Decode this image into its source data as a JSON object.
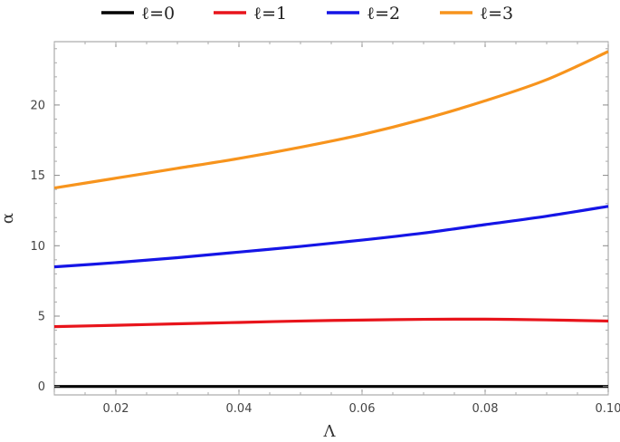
{
  "chart_data": {
    "type": "line",
    "title": "",
    "xlabel": "Λ",
    "ylabel": "α",
    "xlim": [
      0.01,
      0.1
    ],
    "ylim": [
      -0.6,
      24.5
    ],
    "grid": false,
    "legend_position": "top",
    "x_ticks": [
      {
        "value": 0.02,
        "label": "0.02"
      },
      {
        "value": 0.04,
        "label": "0.04"
      },
      {
        "value": 0.06,
        "label": "0.06"
      },
      {
        "value": 0.08,
        "label": "0.08"
      },
      {
        "value": 0.1,
        "label": "0.10"
      }
    ],
    "y_ticks": [
      {
        "value": 0,
        "label": "0"
      },
      {
        "value": 5,
        "label": "5"
      },
      {
        "value": 10,
        "label": "10"
      },
      {
        "value": 15,
        "label": "15"
      },
      {
        "value": 20,
        "label": "20"
      }
    ],
    "x": [
      0.01,
      0.02,
      0.03,
      0.04,
      0.05,
      0.06,
      0.07,
      0.08,
      0.09,
      0.1
    ],
    "series": [
      {
        "name": "ℓ=0",
        "color": "#000000",
        "values": [
          0,
          0,
          0,
          0,
          0,
          0,
          0,
          0,
          0,
          0
        ]
      },
      {
        "name": "ℓ=1",
        "color": "#e8141b",
        "values": [
          4.25,
          4.35,
          4.45,
          4.55,
          4.65,
          4.72,
          4.77,
          4.78,
          4.73,
          4.65
        ]
      },
      {
        "name": "ℓ=2",
        "color": "#1515e6",
        "values": [
          8.5,
          8.8,
          9.15,
          9.55,
          9.95,
          10.4,
          10.9,
          11.5,
          12.1,
          12.8
        ]
      },
      {
        "name": "ℓ=3",
        "color": "#f7941d",
        "values": [
          14.1,
          14.8,
          15.5,
          16.2,
          17.0,
          17.9,
          19.0,
          20.3,
          21.8,
          23.8
        ]
      }
    ]
  }
}
